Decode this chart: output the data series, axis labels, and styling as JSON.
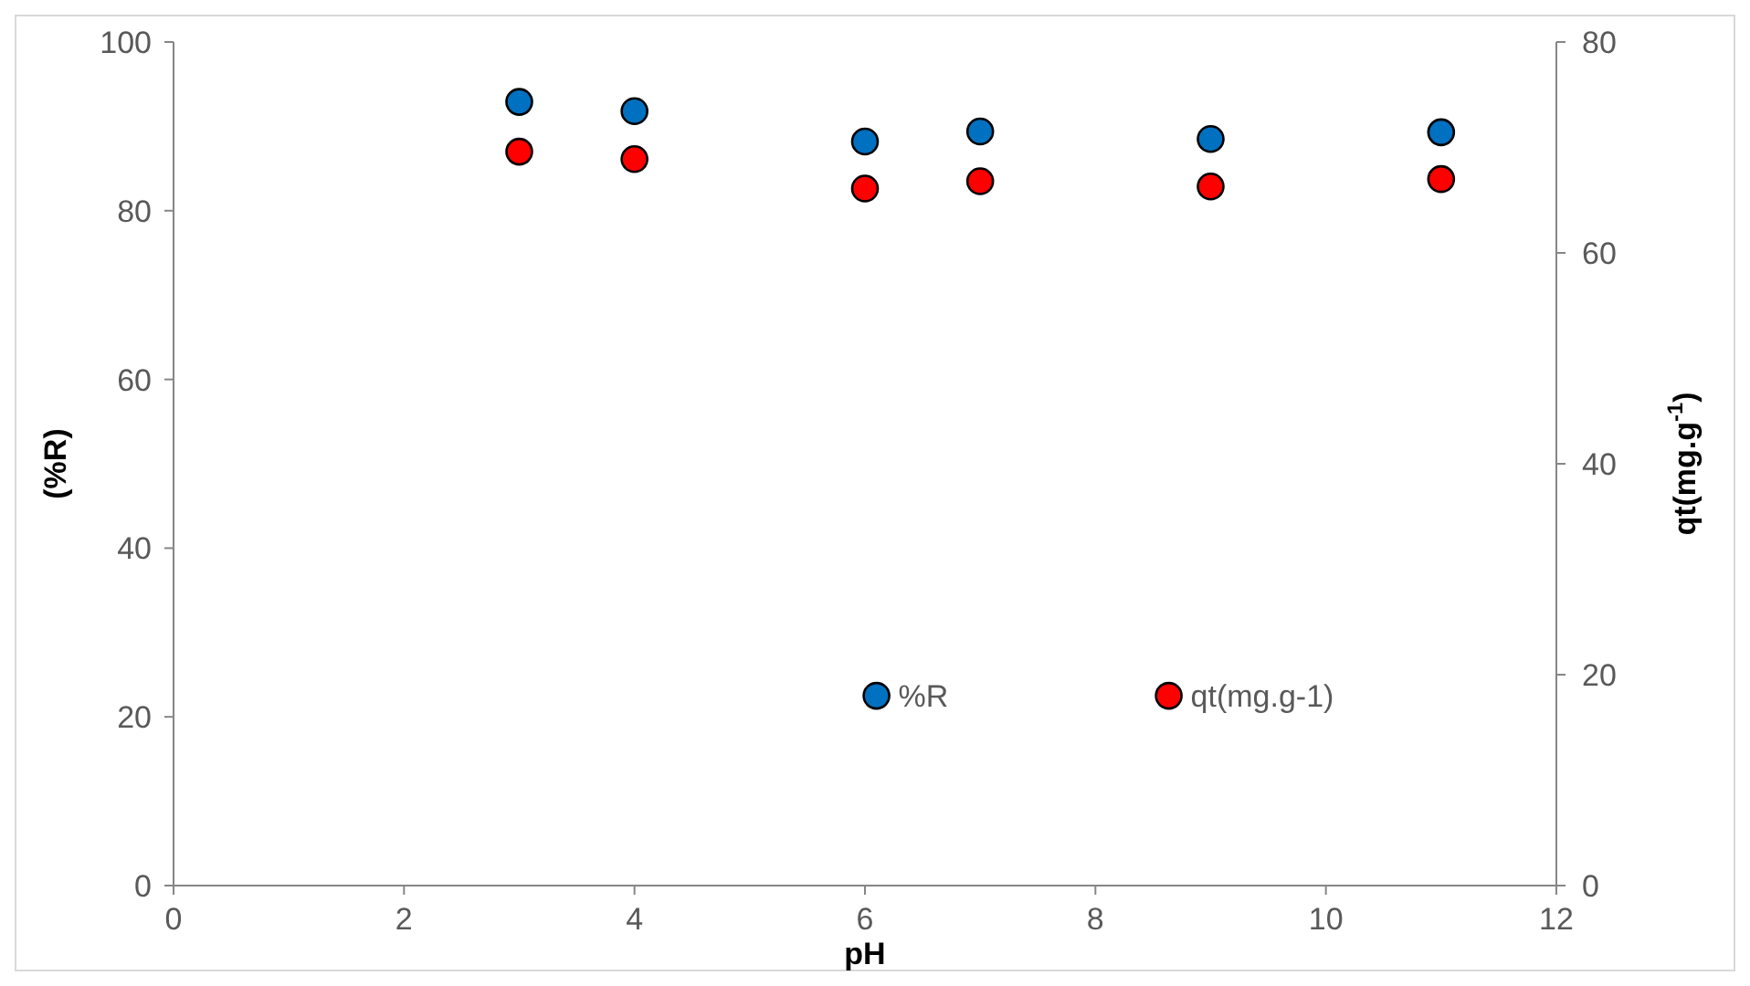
{
  "chart_data": {
    "type": "scatter",
    "xlabel": "pH",
    "ylabel": "(%R)",
    "y2label": "qt(mg.g$^{-1}$)",
    "xlim": [
      0,
      12
    ],
    "xticks": [
      0,
      2,
      4,
      6,
      8,
      10,
      12
    ],
    "ylim": [
      0,
      100
    ],
    "yticks": [
      0,
      20,
      40,
      60,
      80,
      100
    ],
    "y2lim": [
      0,
      80
    ],
    "y2ticks": [
      0,
      20,
      40,
      60,
      80
    ],
    "grid": false,
    "legend": "bottom",
    "marker": "circle",
    "series": [
      {
        "name": "%R",
        "color": "#0070c0",
        "x": [
          3,
          4,
          6,
          7,
          9,
          11
        ],
        "values": [
          92.9,
          91.8,
          88.2,
          89.4,
          88.5,
          89.3
        ]
      },
      {
        "name": "qt(mg.g-1)",
        "color": "#ff0000",
        "axis": "y2",
        "x": [
          3,
          4,
          6,
          7,
          9,
          11
        ],
        "values": [
          69.6,
          68.9,
          66.1,
          66.8,
          66.3,
          67.0
        ]
      }
    ]
  }
}
